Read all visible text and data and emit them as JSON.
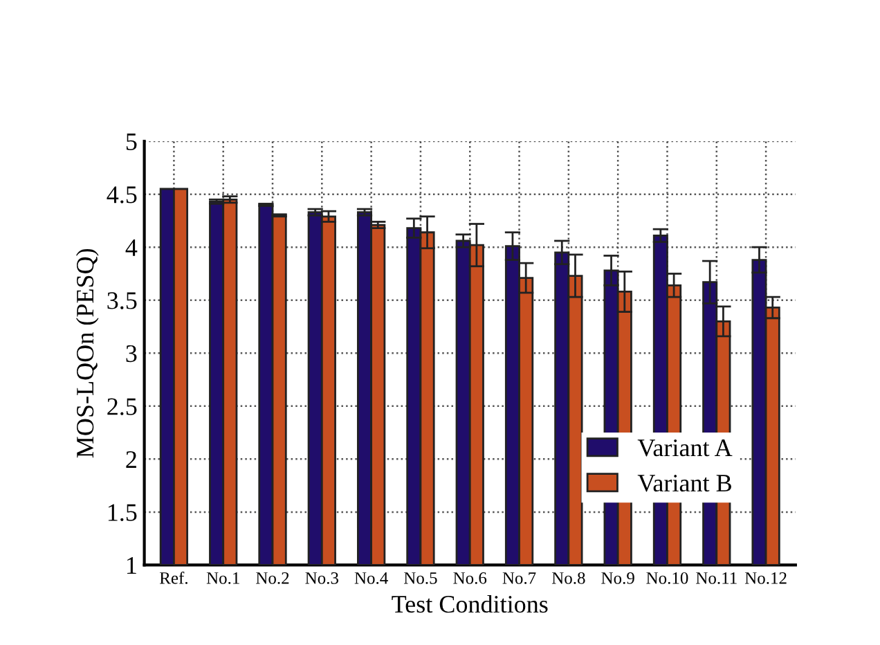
{
  "chart_data": {
    "type": "bar",
    "xlabel": "Test Conditions",
    "ylabel": "MOS-LQOn (PESQ)",
    "categories": [
      "Ref.",
      "No.1",
      "No.2",
      "No.3",
      "No.4",
      "No.5",
      "No.6",
      "No.7",
      "No.8",
      "No.9",
      "No.10",
      "No.11",
      "No.12"
    ],
    "series": [
      {
        "name": "Variant A",
        "color": "#200d6b",
        "values": [
          4.55,
          4.43,
          4.4,
          4.33,
          4.33,
          4.18,
          4.06,
          4.01,
          3.95,
          3.78,
          4.11,
          3.67,
          3.88
        ],
        "errors": [
          null,
          0.02,
          0.01,
          0.03,
          0.03,
          0.09,
          0.06,
          0.13,
          0.11,
          0.14,
          0.06,
          0.2,
          0.12
        ]
      },
      {
        "name": "Variant B",
        "color": "#c84f20",
        "values": [
          4.55,
          4.45,
          4.3,
          4.29,
          4.21,
          4.14,
          4.02,
          3.71,
          3.73,
          3.58,
          3.64,
          3.3,
          3.43
        ],
        "errors": [
          null,
          0.03,
          0.01,
          0.05,
          0.03,
          0.15,
          0.2,
          0.14,
          0.2,
          0.19,
          0.11,
          0.14,
          0.1
        ]
      }
    ],
    "ylim": [
      1,
      5
    ],
    "yticks": [
      1,
      1.5,
      2,
      2.5,
      3,
      3.5,
      4,
      4.5,
      5
    ],
    "grid": true,
    "legend": "bottom right"
  }
}
